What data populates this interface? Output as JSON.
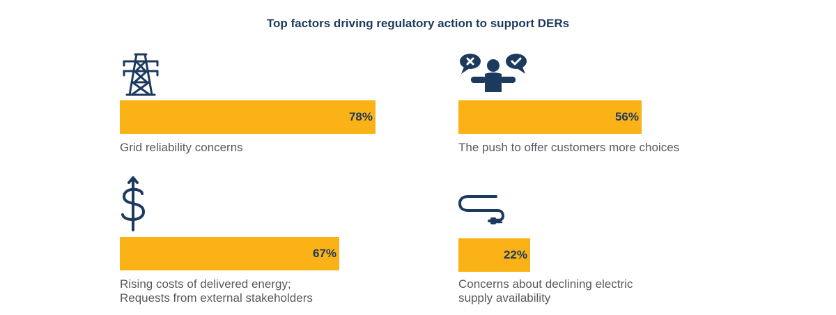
{
  "colors": {
    "bar": "#fbb217",
    "text_dark": "#1c3a5e",
    "text_label": "#555a60"
  },
  "chart_data": {
    "type": "bar",
    "title": "Top factors driving regulatory action to support DERs",
    "unit": "%",
    "xlim": [
      0,
      100
    ],
    "items": [
      {
        "icon": "transmission-tower-icon",
        "value": 78,
        "display": "78%",
        "label_lines": [
          "Grid reliability concerns"
        ]
      },
      {
        "icon": "customer-choice-icon",
        "value": 56,
        "display": "56%",
        "label_lines": [
          "The push to offer customers more choices"
        ]
      },
      {
        "icon": "dollar-sign-icon",
        "value": 67,
        "display": "67%",
        "label_lines": [
          "Rising costs of delivered energy;",
          "Requests from external stakeholders"
        ]
      },
      {
        "icon": "power-cord-plug-icon",
        "value": 22,
        "display": "22%",
        "label_lines": [
          "Concerns about declining electric",
          "supply availability"
        ]
      }
    ]
  }
}
